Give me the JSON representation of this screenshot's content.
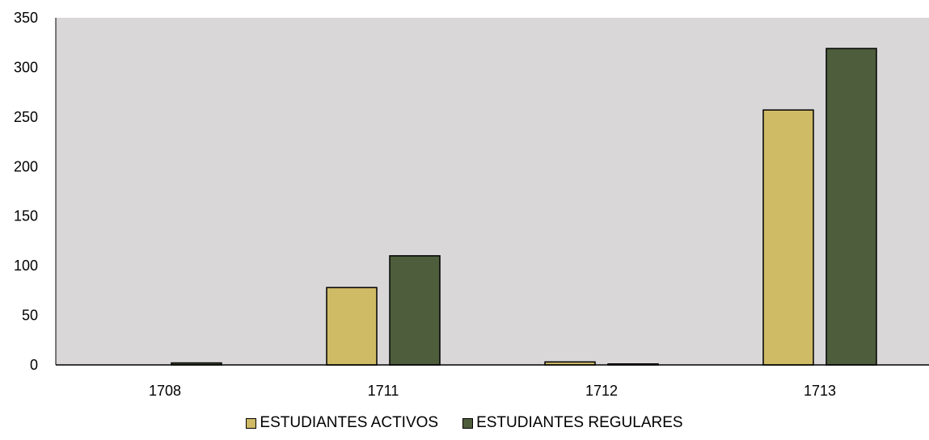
{
  "chart_data": {
    "type": "bar",
    "categories": [
      "1708",
      "1711",
      "1712",
      "1713"
    ],
    "series": [
      {
        "name": "ESTUDIANTES ACTIVOS",
        "values": [
          0,
          78,
          3,
          257
        ],
        "color": "#cfba66"
      },
      {
        "name": "ESTUDIANTES REGULARES",
        "values": [
          2,
          110,
          1,
          319
        ],
        "color": "#4e5e3c"
      }
    ],
    "ylim": [
      0,
      350
    ],
    "yticks": [
      0,
      50,
      100,
      150,
      200,
      250,
      300,
      350
    ],
    "title": "",
    "xlabel": "",
    "ylabel": "",
    "legend_position": "bottom",
    "grid": false,
    "plot_background": "#d9d7d7"
  }
}
